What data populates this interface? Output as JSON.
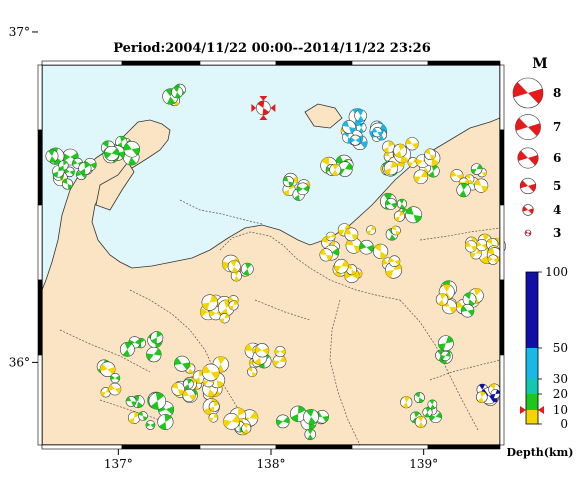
{
  "title": "Period:2004/11/22 00:00--2014/11/22 23:26",
  "map": {
    "lon_range": [
      136.5,
      139.5
    ],
    "lat_range": [
      35.75,
      36.9
    ],
    "lon_ticks": [
      {
        "value": 137,
        "label": "137°"
      },
      {
        "value": 138,
        "label": "138°"
      },
      {
        "value": 139,
        "label": "139°"
      }
    ],
    "lat_ticks": [
      {
        "value": 37,
        "label": "37°"
      },
      {
        "value": 36,
        "label": "36°"
      }
    ],
    "land_color": "#fbe4c4",
    "sea_color": "#dff6fb",
    "highlight_event": {
      "lon": 137.95,
      "lat": 36.77,
      "magnitude": 5,
      "depth_km": 10,
      "color": "#e41a1c"
    }
  },
  "magnitude_legend": {
    "title": "M",
    "items": [
      {
        "label": "8",
        "m": 8
      },
      {
        "label": "7",
        "m": 7
      },
      {
        "label": "6",
        "m": 6
      },
      {
        "label": "5",
        "m": 5
      },
      {
        "label": "4",
        "m": 4
      },
      {
        "label": "3",
        "m": 3
      }
    ]
  },
  "depth_legend": {
    "title": "Depth(km)",
    "max": 100,
    "ticks": [
      {
        "value": 100,
        "label": "100"
      },
      {
        "value": 50,
        "label": "50"
      },
      {
        "value": 30,
        "label": "30"
      },
      {
        "value": 20,
        "label": "20"
      },
      {
        "value": 10,
        "label": "10"
      },
      {
        "value": 0,
        "label": "0"
      }
    ],
    "bands": [
      {
        "from": 0,
        "to": 10,
        "color": "#f6d400"
      },
      {
        "from": 10,
        "to": 20,
        "color": "#1dc81d"
      },
      {
        "from": 20,
        "to": 30,
        "color": "#12c8b0"
      },
      {
        "from": 30,
        "to": 50,
        "color": "#1ab8e6"
      },
      {
        "from": 50,
        "to": 100,
        "color": "#1010a8"
      }
    ],
    "marker_depth": 10,
    "marker_color": "#e41a1c"
  }
}
